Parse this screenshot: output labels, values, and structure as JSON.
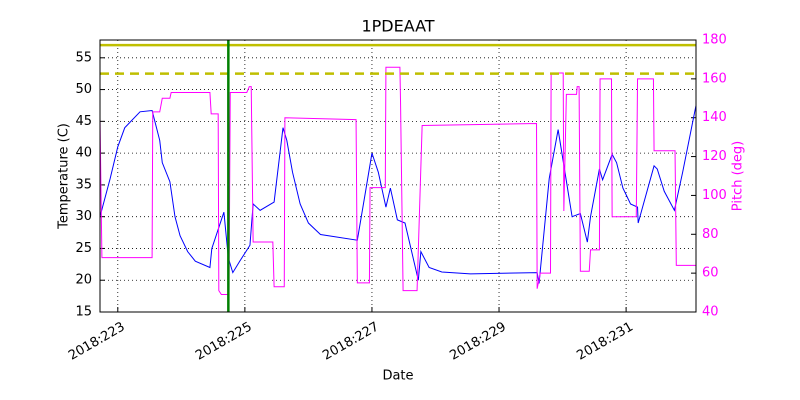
{
  "chart_data": {
    "type": "line",
    "title": "1PDEAAT",
    "x_label": "Date",
    "y_label": "Temperature (C)",
    "y2_label": "Pitch (deg)",
    "xlim": [
      222.72,
      232.1
    ],
    "xticks": [
      {
        "value": 223,
        "label": "2018:223"
      },
      {
        "value": 225,
        "label": "2018:225"
      },
      {
        "value": 227,
        "label": "2018:227"
      },
      {
        "value": 229,
        "label": "2018:229"
      },
      {
        "value": 231,
        "label": "2018:231"
      }
    ],
    "ylim": [
      15,
      57.8
    ],
    "yticks": [
      15,
      20,
      25,
      30,
      35,
      40,
      45,
      50,
      55
    ],
    "y2lim": [
      40,
      180
    ],
    "y2ticks": [
      40,
      60,
      80,
      100,
      120,
      140,
      160,
      180
    ],
    "y2_color": "#ff00ff",
    "grid": true,
    "hlines": [
      {
        "value": 57,
        "color": "#bfbf00",
        "dashed": false
      },
      {
        "value": 52.5,
        "color": "#bfbf00",
        "dashed": true
      }
    ],
    "vlines": [
      {
        "value": 224.74,
        "color": "#008000"
      }
    ],
    "series": [
      {
        "color": "#0000ff",
        "axis": "y",
        "x": [
          222.72,
          222.88,
          223.0,
          223.11,
          223.35,
          223.54,
          223.66,
          223.7,
          223.82,
          223.9,
          223.98,
          224.1,
          224.22,
          224.45,
          224.48,
          224.67,
          224.74,
          224.81,
          224.92,
          225.08,
          225.13,
          225.24,
          225.46,
          225.6,
          225.66,
          225.75,
          225.87,
          226.0,
          226.19,
          226.77,
          226.9,
          227.0,
          227.1,
          227.22,
          227.29,
          227.4,
          227.52,
          227.73,
          227.77,
          227.9,
          228.1,
          228.55,
          229.6,
          229.63,
          229.79,
          229.93,
          230.15,
          230.28,
          230.39,
          230.44,
          230.58,
          230.63,
          230.78,
          230.85,
          230.95,
          231.07,
          231.18,
          231.19,
          231.44,
          231.49,
          231.6,
          231.76,
          231.89,
          232.1
        ],
        "values": [
          30,
          36,
          41,
          44,
          46.5,
          46.7,
          42,
          38.5,
          35.5,
          30,
          27,
          24.5,
          23,
          22,
          25,
          30.7,
          23.5,
          21.2,
          23,
          25.5,
          32,
          31,
          32.3,
          44,
          42,
          37,
          32,
          29,
          27.2,
          26.3,
          34,
          40,
          37,
          31.5,
          34.5,
          29.5,
          29,
          20,
          24.5,
          22,
          21.3,
          21,
          21.2,
          19.5,
          36,
          43.7,
          30,
          30.5,
          26,
          30,
          37.5,
          35.8,
          39.8,
          38.5,
          34.5,
          32,
          31.5,
          29,
          38,
          37.5,
          34,
          31,
          37,
          47.5
        ]
      },
      {
        "color": "#ff00ff",
        "axis": "y2",
        "x": [
          222.72,
          222.75,
          223.54,
          223.55,
          223.66,
          223.7,
          223.82,
          223.84,
          224.45,
          224.47,
          224.58,
          224.59,
          224.63,
          224.75,
          224.77,
          225.03,
          225.07,
          225.1,
          225.13,
          225.44,
          225.46,
          225.62,
          225.63,
          226.75,
          226.77,
          226.96,
          226.97,
          227.21,
          227.22,
          227.44,
          227.45,
          227.49,
          227.71,
          227.79,
          229.59,
          229.6,
          229.65,
          229.81,
          229.82,
          230.01,
          230.02,
          230.06,
          230.22,
          230.23,
          230.26,
          230.28,
          230.42,
          230.44,
          230.58,
          230.59,
          230.77,
          230.78,
          231.16,
          231.18,
          231.43,
          231.44,
          231.77,
          231.79,
          232.1
        ],
        "values": [
          140,
          68,
          68,
          143,
          143,
          150,
          150,
          153,
          153,
          142,
          142,
          51,
          49,
          49,
          153,
          153,
          156,
          156,
          76,
          76,
          53,
          53,
          140,
          139,
          55,
          55,
          104,
          104,
          166,
          166,
          148,
          51,
          51,
          136,
          137,
          52,
          60,
          60,
          163,
          163,
          92,
          152,
          152,
          156,
          156,
          61,
          61,
          72,
          72,
          160,
          160,
          89,
          89,
          160,
          160,
          123,
          123,
          64,
          64
        ]
      }
    ]
  }
}
